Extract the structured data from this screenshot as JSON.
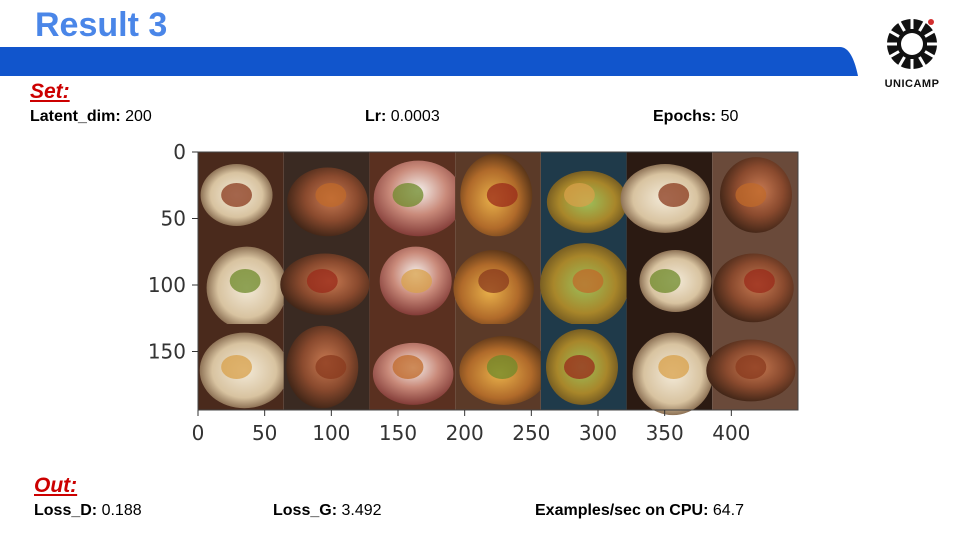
{
  "slide": {
    "title": "Result 3",
    "colors": {
      "title": "#4a86e8",
      "banner": "#1155cc",
      "section_label": "#cc0000"
    }
  },
  "logo": {
    "text": "UNICAMP",
    "icon": "unicamp-logo-icon"
  },
  "set": {
    "label": "Set:",
    "params": [
      {
        "name": "Latent_dim:",
        "value": "200"
      },
      {
        "name": "Lr:",
        "value": "0.0003"
      },
      {
        "name": "Epochs:",
        "value": "50"
      }
    ]
  },
  "out": {
    "label": "Out:",
    "params": [
      {
        "name": "Loss_D:",
        "value": "0.188"
      },
      {
        "name": "Loss_G:",
        "value": "3.492"
      },
      {
        "name": "Examples/sec on CPU:",
        "value": "64.7"
      }
    ]
  },
  "chart_data": {
    "type": "image-grid",
    "description_visible": "grid of 21 generated food images (3 rows × 7 columns)",
    "rows": 3,
    "cols": 7,
    "x_ticks": [
      "0",
      "50",
      "100",
      "150",
      "200",
      "250",
      "300",
      "350",
      "400"
    ],
    "y_ticks": [
      "0",
      "50",
      "100",
      "150"
    ],
    "xlim": [
      0,
      450
    ],
    "ylim": [
      194,
      0
    ]
  }
}
